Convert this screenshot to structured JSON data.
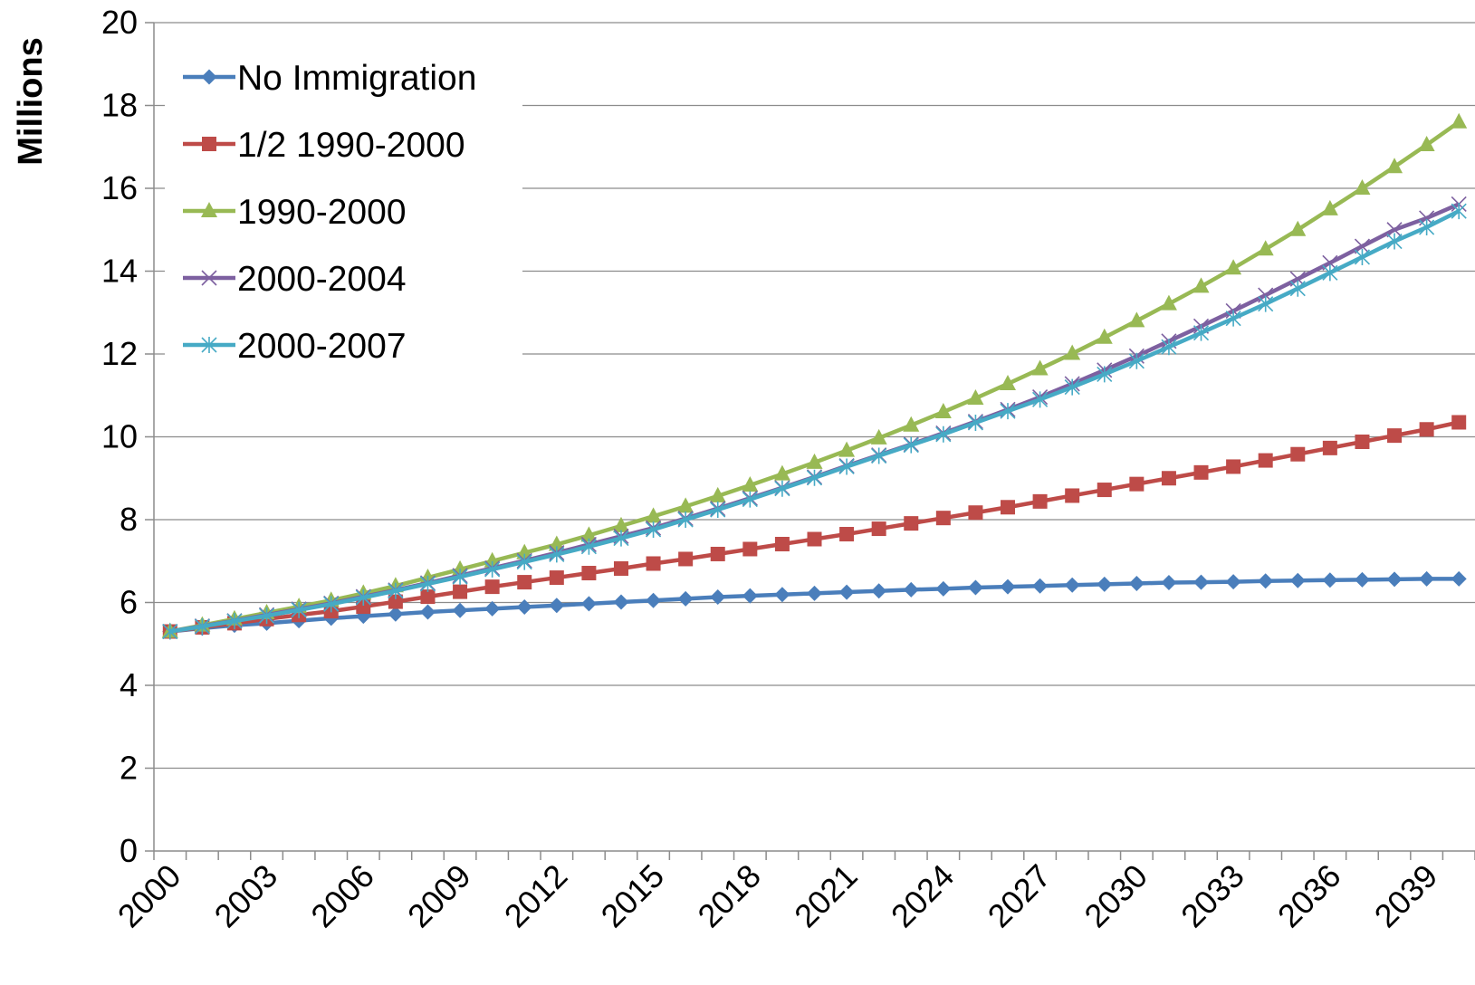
{
  "chart_data": {
    "type": "line",
    "title": "",
    "xlabel": "",
    "ylabel": "Millions",
    "ylim": [
      0,
      20
    ],
    "yticks": [
      0,
      2,
      4,
      6,
      8,
      10,
      12,
      14,
      16,
      18,
      20
    ],
    "xticks": [
      2000,
      2003,
      2006,
      2009,
      2012,
      2015,
      2018,
      2021,
      2024,
      2027,
      2030,
      2033,
      2036,
      2039
    ],
    "grid": "horizontal",
    "legend": "top-left",
    "x": [
      2000,
      2001,
      2002,
      2003,
      2004,
      2005,
      2006,
      2007,
      2008,
      2009,
      2010,
      2011,
      2012,
      2013,
      2014,
      2015,
      2016,
      2017,
      2018,
      2019,
      2020,
      2021,
      2022,
      2023,
      2024,
      2025,
      2026,
      2027,
      2028,
      2029,
      2030,
      2031,
      2032,
      2033,
      2034,
      2035,
      2036,
      2037,
      2038,
      2039,
      2040
    ],
    "series": [
      {
        "name": "No Immigration",
        "color": "#4a7ebb",
        "marker": "diamond",
        "values": [
          5.3,
          5.38,
          5.45,
          5.5,
          5.56,
          5.62,
          5.67,
          5.72,
          5.77,
          5.81,
          5.85,
          5.89,
          5.93,
          5.97,
          6.01,
          6.05,
          6.09,
          6.13,
          6.16,
          6.19,
          6.22,
          6.25,
          6.28,
          6.31,
          6.33,
          6.36,
          6.38,
          6.4,
          6.42,
          6.44,
          6.46,
          6.48,
          6.49,
          6.5,
          6.52,
          6.53,
          6.54,
          6.55,
          6.56,
          6.57,
          6.57
        ]
      },
      {
        "name": "1/2 1990-2000",
        "color": "#be4b48",
        "marker": "square",
        "values": [
          5.3,
          5.4,
          5.5,
          5.6,
          5.7,
          5.79,
          5.9,
          6.02,
          6.14,
          6.26,
          6.38,
          6.49,
          6.6,
          6.71,
          6.82,
          6.94,
          7.05,
          7.17,
          7.29,
          7.41,
          7.53,
          7.65,
          7.78,
          7.91,
          8.04,
          8.17,
          8.3,
          8.44,
          8.58,
          8.72,
          8.86,
          9.0,
          9.14,
          9.28,
          9.43,
          9.58,
          9.73,
          9.88,
          10.03,
          10.18,
          10.35
        ]
      },
      {
        "name": "1990-2000",
        "color": "#98b954",
        "marker": "triangle",
        "values": [
          5.3,
          5.45,
          5.6,
          5.75,
          5.9,
          6.05,
          6.22,
          6.4,
          6.6,
          6.8,
          7.0,
          7.2,
          7.4,
          7.62,
          7.85,
          8.08,
          8.32,
          8.57,
          8.83,
          9.1,
          9.38,
          9.67,
          9.97,
          10.28,
          10.6,
          10.93,
          11.28,
          11.64,
          12.01,
          12.4,
          12.8,
          13.21,
          13.63,
          14.07,
          14.53,
          15.0,
          15.5,
          16.0,
          16.52,
          17.05,
          17.6
        ]
      },
      {
        "name": "2000-2004",
        "color": "#7d60a0",
        "marker": "x",
        "values": [
          5.3,
          5.43,
          5.56,
          5.7,
          5.84,
          5.98,
          6.14,
          6.3,
          6.47,
          6.65,
          6.83,
          7.01,
          7.2,
          7.4,
          7.6,
          7.8,
          8.03,
          8.27,
          8.52,
          8.77,
          9.03,
          9.3,
          9.56,
          9.82,
          10.09,
          10.37,
          10.66,
          10.96,
          11.28,
          11.61,
          11.95,
          12.31,
          12.67,
          13.04,
          13.42,
          13.81,
          14.2,
          14.6,
          15.0,
          15.28,
          15.62
        ]
      },
      {
        "name": "2000-2007",
        "color": "#46aac5",
        "marker": "star",
        "values": [
          5.3,
          5.42,
          5.55,
          5.68,
          5.82,
          5.96,
          6.12,
          6.28,
          6.45,
          6.62,
          6.8,
          6.98,
          7.16,
          7.35,
          7.55,
          7.76,
          8.0,
          8.24,
          8.49,
          8.75,
          9.01,
          9.28,
          9.54,
          9.8,
          10.06,
          10.34,
          10.62,
          10.9,
          11.2,
          11.51,
          11.83,
          12.17,
          12.51,
          12.86,
          13.21,
          13.58,
          13.96,
          14.34,
          14.72,
          15.06,
          15.45
        ]
      }
    ]
  }
}
